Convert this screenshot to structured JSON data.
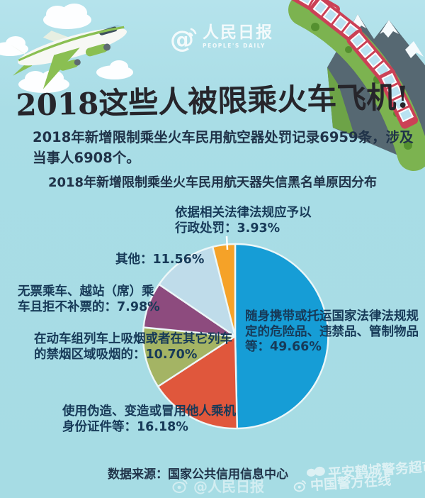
{
  "page": {
    "background": "#a6dce4",
    "title": "2018这些人被限乘火车飞机!",
    "subtitle_lines": [
      "2018年新增限制乘坐火车民用航空器处罚记录6959条，涉及",
      "当事人6908个。"
    ],
    "source": "数据来源：国家公共信用信息中心"
  },
  "logo": {
    "at": "@",
    "name": "人民日报",
    "subname": "PEOPLE'S DAILY"
  },
  "chart_data": {
    "type": "pie",
    "title": "2018年新增限制乘坐火车民用航天器失信黑名单原因分布",
    "start_angle_deg": -90,
    "direction": "clockwise",
    "legend_position": "callout-labels",
    "slices": [
      {
        "label": "随身携带或托运国家法律法规规定的危险品、违禁品、管制物品等",
        "value": 49.66,
        "color": "#169dd6",
        "label_lines": [
          "随身携带或托运国家法律法规规",
          "定的危险品、违禁品、管制物品",
          "等：49.66%"
        ]
      },
      {
        "label": "使用伪造、变造或冒用他人乘机身份证件等",
        "value": 16.18,
        "color": "#e0573c",
        "label_lines": [
          "使用伪造、变造或冒用他人乘机",
          "身份证件等：16.18%"
        ]
      },
      {
        "label": "在动车组列车上吸烟或者在其它列车的禁烟区域吸烟的",
        "value": 10.7,
        "color": "#a4b464",
        "label_lines": [
          "在动车组列车上吸烟或者在其它列车",
          "的禁烟区域吸烟的：10.70%"
        ]
      },
      {
        "label": "无票乘车、越站（席）乘车且拒不补票的",
        "value": 7.98,
        "color": "#8d4b7e",
        "label_lines": [
          "无票乘车、越站（席）乘",
          "车且拒不补票的：7.98%"
        ]
      },
      {
        "label": "其他",
        "value": 11.56,
        "color": "#bfdcea",
        "label_lines": [
          "其他：11.56%"
        ]
      },
      {
        "label": "依据相关法律法规应予以行政处罚",
        "value": 3.93,
        "color": "#f5a228",
        "label_lines": [
          "依据相关法律法规应予以",
          "行政处罚：3.93%"
        ]
      }
    ]
  },
  "icons": {
    "logo_at": "@ with microphone waves",
    "weibo": "weibo eye swirl",
    "chat_bubbles": "double chat bubble"
  },
  "watermarks": {
    "bottom_center": "@人民日报",
    "bottom_right_line1": "平安鹤城警务超市",
    "bottom_right_line2": "中国警方在线"
  }
}
